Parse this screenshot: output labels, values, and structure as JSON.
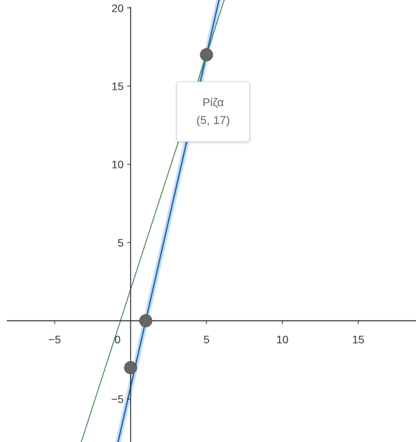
{
  "chart_data": {
    "type": "line",
    "x_range": [
      -8.6,
      18.8
    ],
    "y_range": [
      -7.75,
      20.5
    ],
    "xticks": [
      -5,
      0,
      5,
      10,
      15
    ],
    "yticks": [
      -5,
      5,
      10,
      15,
      20
    ],
    "tick_labels": {
      "x": [
        "−5",
        "0",
        "5",
        "10",
        "15"
      ],
      "y": [
        "−5",
        "5",
        "10",
        "15",
        "20"
      ]
    },
    "grid": false,
    "lines": [
      {
        "points": [
          [
            1,
            0
          ],
          [
            5,
            17
          ]
        ],
        "color": "#1565c0",
        "highlighted": true
      },
      {
        "points": [
          [
            0,
            2
          ],
          [
            5,
            17
          ]
        ],
        "color": "#2e7d32",
        "highlighted": false
      }
    ],
    "points": [
      {
        "x": 5,
        "y": 17
      },
      {
        "x": 1,
        "y": 0
      },
      {
        "x": 0,
        "y": -3
      }
    ],
    "tooltip": {
      "title": "Ρίζα",
      "coords": "(5, 17)"
    }
  }
}
